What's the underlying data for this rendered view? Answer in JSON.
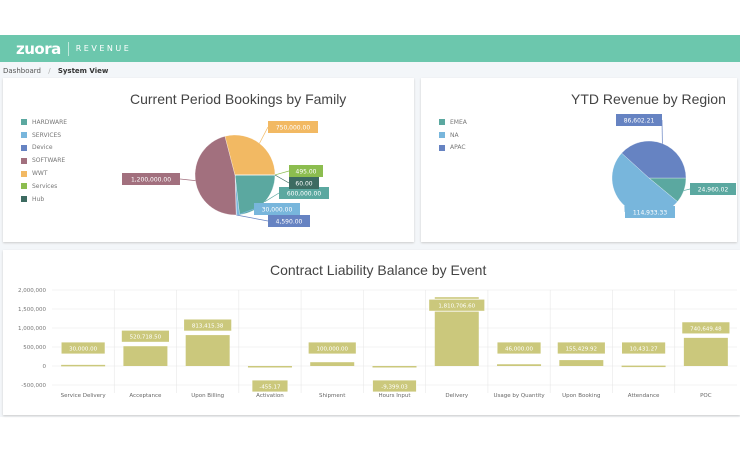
{
  "header": {
    "logo": "zuora",
    "product": "REVENUE"
  },
  "breadcrumb": {
    "parent": "Dashboard",
    "divider": "/",
    "current": "System View"
  },
  "colors": {
    "header": "#6cc7ad",
    "bar": "#cbc87c"
  },
  "chart_data": [
    {
      "type": "pie",
      "title": "Current Period Bookings by Family",
      "legend_position": "left",
      "slices": [
        {
          "name": "HARDWARE",
          "value": 600000,
          "label": "600,000.00",
          "color": "#5ba8a0"
        },
        {
          "name": "SERVICES",
          "value": 30000,
          "label": "30,000.00",
          "color": "#78b6dc"
        },
        {
          "name": "Device",
          "value": 4590,
          "label": "4,590.00",
          "color": "#6683c2"
        },
        {
          "name": "SOFTWARE",
          "value": 1200000,
          "label": "1,200,000.00",
          "color": "#a2707e"
        },
        {
          "name": "WWT",
          "value": 750000,
          "label": "750,000.00",
          "color": "#f2b963"
        },
        {
          "name": "Services",
          "value": 495,
          "label": "495.00",
          "color": "#8cbd4f"
        },
        {
          "name": "Hub",
          "value": 60,
          "label": "60.00",
          "color": "#3d6b61"
        }
      ]
    },
    {
      "type": "pie",
      "title": "YTD Revenue by Region",
      "legend_position": "left",
      "slices": [
        {
          "name": "EMEA",
          "value": 24960.02,
          "label": "24,960.02",
          "color": "#5ba8a0"
        },
        {
          "name": "NA",
          "value": 114933.33,
          "label": "114,933.33",
          "color": "#78b6dc"
        },
        {
          "name": "APAC",
          "value": 86602.21,
          "label": "86,602.21",
          "color": "#6683c2"
        }
      ]
    },
    {
      "type": "bar",
      "title": "Contract Liability Balance by Event",
      "ylim": [
        -500000,
        2000000
      ],
      "grid": true,
      "yticks": [
        2000000,
        1500000,
        1000000,
        500000,
        0,
        -500000
      ],
      "ytick_labels": [
        "2,000,000",
        "1,500,000",
        "1,000,000",
        "500,000",
        "0",
        "-500,000"
      ],
      "categories": [
        "Service Delivery",
        "Acceptance",
        "Upon Billing",
        "Activation",
        "Shipment",
        "Hours Input",
        "Delivery",
        "Usage by Quantity",
        "Upon Booking",
        "Attendance",
        "POC"
      ],
      "values": [
        30000,
        520718.5,
        813415.38,
        -455.17,
        100000,
        -9399.03,
        1810706.6,
        46000,
        155429.92,
        10431.27,
        740649.48
      ],
      "labels": [
        "30,000.00",
        "520,718.50",
        "813,415.38",
        "-455.17",
        "100,000.00",
        "-9,399.03",
        "1,810,706.60",
        "46,000.00",
        "155,429.92",
        "10,431.27",
        "740,649.48"
      ]
    }
  ]
}
